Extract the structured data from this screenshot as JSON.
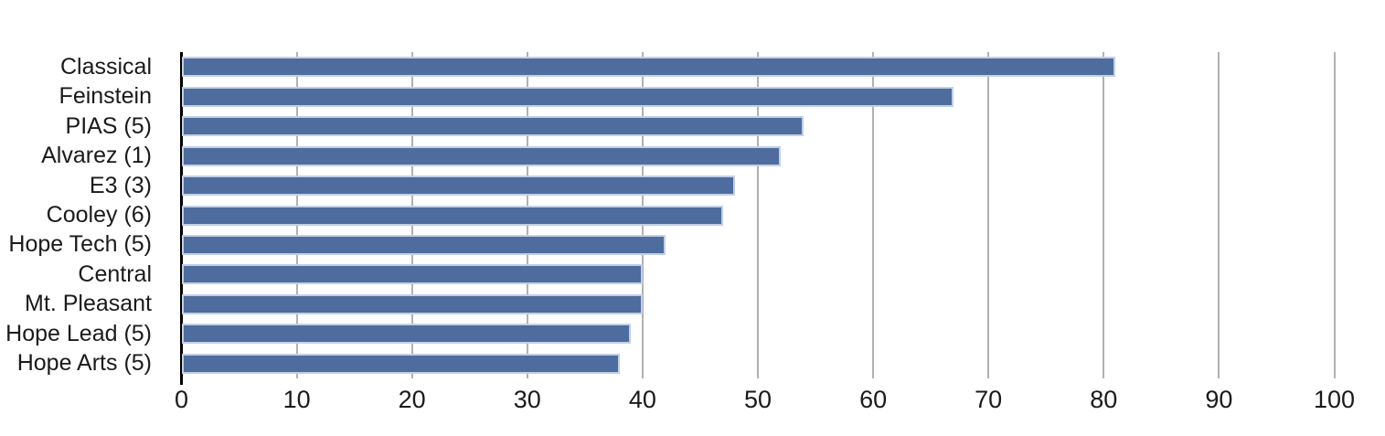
{
  "chart_data": {
    "type": "bar",
    "orientation": "horizontal",
    "title": "",
    "xlabel": "",
    "ylabel": "",
    "categories": [
      "Classical",
      "Feinstein",
      "PIAS (5)",
      "Alvarez (1)",
      "E3 (3)",
      "Cooley (6)",
      "Hope Tech (5)",
      "Central",
      "Mt. Pleasant",
      "Hope Lead (5)",
      "Hope Arts (5)"
    ],
    "values": [
      81,
      67,
      54,
      52,
      48,
      47,
      42,
      40,
      40,
      39,
      38
    ],
    "xlim": [
      0,
      100
    ],
    "x_ticks": [
      0,
      10,
      20,
      30,
      40,
      50,
      60,
      70,
      80,
      90,
      100
    ],
    "grid": true,
    "legend": false,
    "colors": {
      "bar_fill": "#4e6c9d",
      "bar_border": "#c3cfe4",
      "gridline": "#b1b1b1",
      "axis": "#000000",
      "text": "#1a1a1a",
      "background": "#ffffff"
    }
  }
}
